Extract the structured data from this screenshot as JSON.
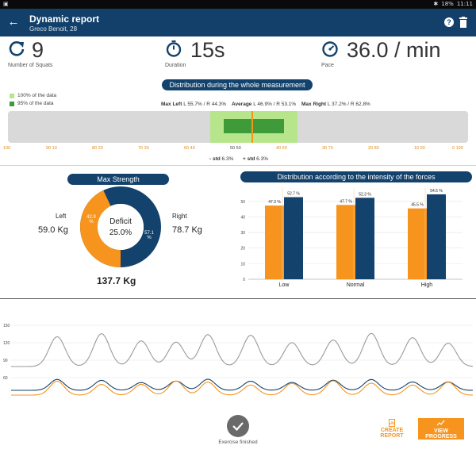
{
  "status_bar": {
    "time": "11:11",
    "battery": "18%"
  },
  "header": {
    "back_icon": "arrow-left-icon",
    "title": "Dynamic report",
    "subtitle": "Greco Benoit, 28"
  },
  "metrics": [
    {
      "icon": "repeat-icon",
      "value": "9",
      "label": "Number of Squats"
    },
    {
      "icon": "stopwatch-icon",
      "value": "15s",
      "label": "Duration"
    },
    {
      "icon": "speedometer-icon",
      "value": "36.0 / min",
      "label": "Pace"
    }
  ],
  "distribution": {
    "title": "Distribution during the whole measurement",
    "legend": [
      {
        "label": "100% of the data",
        "color": "#b6e58c"
      },
      {
        "label": "95% of the data",
        "color": "#3f9a3a"
      }
    ],
    "max_left_label": "Max Left",
    "max_left_value": "L 55.7% / R 44.3%",
    "average_label": "Average",
    "average_value": "L 46.9% / R 53.1%",
    "max_right_label": "Max Right",
    "max_right_value": "L 37.2% / R 62.8%",
    "scale": [
      "100",
      "90 10",
      "80 20",
      "70 30",
      "60 40",
      "50 50",
      "40 60",
      "30 70",
      "20 80",
      "10 90",
      "0 100"
    ],
    "minus_std_label": "- std",
    "minus_std_value": "6.3%",
    "plus_std_label": "+ std",
    "plus_std_value": "6.3%"
  },
  "max_strength": {
    "title": "Max Strength",
    "left_label": "Left",
    "left_value": "59.0 Kg",
    "right_label": "Right",
    "right_value": "78.7 Kg",
    "left_pct": "42.9\n%",
    "right_pct": "57.1\n%",
    "center_label": "Deficit",
    "center_value": "25.0%",
    "total": "137.7 Kg",
    "colors": {
      "left": "#f7941d",
      "right": "#13426d"
    },
    "left_fraction": 0.429
  },
  "intensity": {
    "title": "Distribution according to the intensity of the forces",
    "chart_data": {
      "type": "bar",
      "categories": [
        "Low",
        "Normal",
        "High"
      ],
      "series": [
        {
          "values": [
            47.3,
            47.7,
            45.5
          ],
          "labels": [
            "47.3 %",
            "47.7 %",
            "45.5 %"
          ],
          "color": "#f7941d"
        },
        {
          "values": [
            52.7,
            52.3,
            54.5
          ],
          "labels": [
            "52.7 %",
            "52.3 %",
            "54.5 %"
          ],
          "color": "#13426d"
        }
      ],
      "yticks": [
        "50",
        "40",
        "30",
        "20",
        "10",
        "0"
      ],
      "ylim": [
        0,
        55
      ]
    }
  },
  "force_chart": {
    "yticks": [
      "150",
      "120",
      "90",
      "60",
      "30"
    ],
    "colors": {
      "total": "#9a9a9a",
      "left": "#f7941d",
      "right": "#13426d"
    }
  },
  "footer": {
    "finished_label": "Exercise finished",
    "create_report_label": "CREATE REPORT",
    "view_progress_label": "VIEW PROGRESS"
  }
}
